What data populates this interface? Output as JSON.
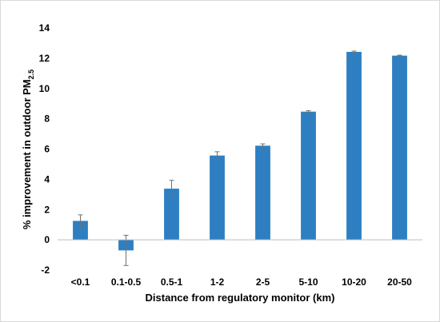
{
  "chart_data": {
    "type": "bar",
    "title": "",
    "xlabel": "Distance from regulatory monitor (km)",
    "ylabel": {
      "main": "% improvement in outdoor PM",
      "subscript": "2.5"
    },
    "categories": [
      "<0.1",
      "0.1-0.5",
      "0.5-1",
      "1-2",
      "2-5",
      "5-10",
      "10-20",
      "20-50"
    ],
    "values": [
      1.25,
      -0.7,
      3.38,
      5.57,
      6.22,
      8.47,
      12.42,
      12.17
    ],
    "error": [
      0.4,
      1.0,
      0.55,
      0.25,
      0.12,
      0.06,
      0.05,
      0.03
    ],
    "ylim": [
      -2,
      14
    ],
    "yticks": [
      -2,
      0,
      2,
      4,
      6,
      8,
      10,
      12,
      14
    ],
    "grid": false,
    "legend": "none",
    "bar_color": "#2e7fc1",
    "error_color": "#707070"
  }
}
